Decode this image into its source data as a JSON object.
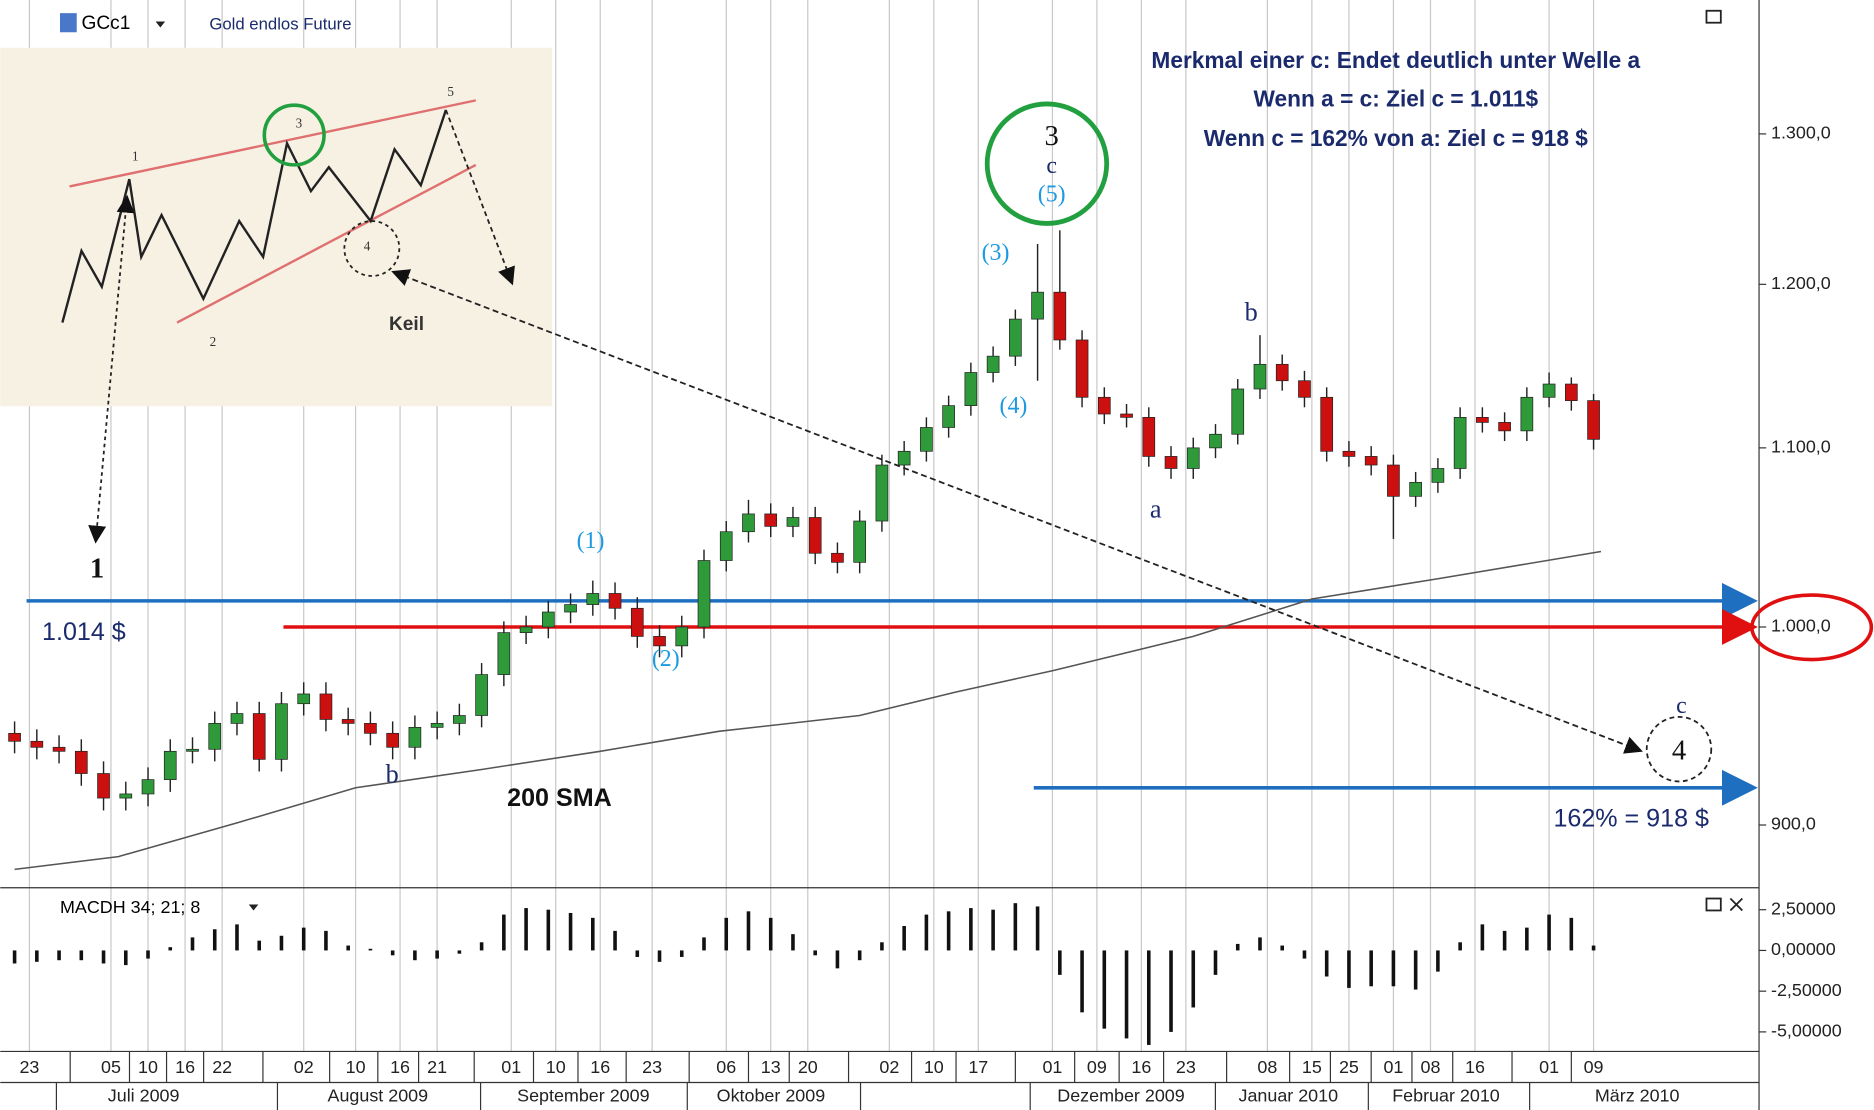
{
  "chart_data": [
    {
      "type": "candlestick",
      "header": "GCc1",
      "subtitle": "Gold endlos Future",
      "log_scale": true,
      "grid": true,
      "up_color": "#2f9a3a",
      "down_color": "#cc1010",
      "xlim": [
        0,
        235
      ],
      "ylim": [
        871,
        1396
      ],
      "yticks": [
        {
          "value": 900,
          "label": "900,0"
        },
        {
          "value": 1000,
          "label": "1.000,0"
        },
        {
          "value": 1100,
          "label": "1.100,0"
        },
        {
          "value": 1200,
          "label": "1.200,0"
        },
        {
          "value": 1300,
          "label": "1.300,0"
        }
      ],
      "x": [
        0,
        3,
        6,
        9,
        12,
        15,
        18,
        21,
        24,
        27,
        30,
        33,
        36,
        39,
        42,
        45,
        48,
        51,
        54,
        57,
        60,
        63,
        66,
        69,
        72,
        75,
        78,
        81,
        84,
        87,
        90,
        93,
        96,
        99,
        102,
        105,
        108,
        111,
        114,
        117,
        120,
        123,
        126,
        129,
        132,
        135,
        138,
        141,
        144,
        147,
        150,
        153,
        156,
        159,
        162,
        165,
        168,
        171,
        174,
        177,
        180,
        183,
        186,
        189,
        192,
        195,
        198,
        201,
        204,
        207,
        210,
        213
      ],
      "open": [
        945,
        941,
        938,
        936,
        925,
        913,
        915,
        922,
        936,
        937,
        950,
        955,
        932,
        960,
        965,
        952,
        950,
        945,
        938,
        948,
        950,
        954,
        975,
        997,
        1000,
        1008,
        1012,
        1018,
        1010,
        995,
        990,
        1000,
        1036,
        1052,
        1062,
        1055,
        1060,
        1040,
        1035,
        1058,
        1090,
        1098,
        1112,
        1125,
        1145,
        1155,
        1178,
        1195,
        1165,
        1130,
        1120,
        1118,
        1095,
        1088,
        1100,
        1108,
        1135,
        1150,
        1140,
        1130,
        1098,
        1095,
        1090,
        1072,
        1080,
        1088,
        1118,
        1115,
        1110,
        1130,
        1138,
        1128
      ],
      "high": [
        951,
        947,
        944,
        942,
        931,
        921,
        928,
        942,
        943,
        956,
        961,
        961,
        966,
        971,
        971,
        958,
        956,
        951,
        954,
        956,
        960,
        981,
        1003,
        1006,
        1014,
        1018,
        1025,
        1024,
        1016,
        1001,
        1006,
        1042,
        1058,
        1070,
        1068,
        1066,
        1066,
        1046,
        1064,
        1096,
        1104,
        1118,
        1131,
        1151,
        1161,
        1184,
        1226,
        1235,
        1171,
        1136,
        1126,
        1124,
        1101,
        1106,
        1114,
        1141,
        1168,
        1156,
        1146,
        1136,
        1104,
        1101,
        1096,
        1086,
        1094,
        1124,
        1124,
        1121,
        1136,
        1145,
        1142,
        1132
      ],
      "low": [
        935,
        932,
        930,
        919,
        907,
        907,
        909,
        916,
        930,
        931,
        944,
        926,
        926,
        954,
        946,
        944,
        939,
        932,
        932,
        942,
        944,
        948,
        969,
        991,
        994,
        1002,
        1006,
        1004,
        989,
        984,
        984,
        994,
        1030,
        1046,
        1049,
        1049,
        1034,
        1029,
        1029,
        1052,
        1084,
        1092,
        1106,
        1119,
        1139,
        1149,
        1140,
        1159,
        1124,
        1114,
        1112,
        1089,
        1082,
        1082,
        1094,
        1102,
        1129,
        1134,
        1124,
        1092,
        1089,
        1084,
        1048,
        1066,
        1074,
        1082,
        1109,
        1104,
        1104,
        1124,
        1122,
        1099
      ],
      "close": [
        941,
        938,
        936,
        925,
        913,
        915,
        922,
        936,
        937,
        950,
        955,
        932,
        960,
        965,
        952,
        950,
        945,
        938,
        948,
        950,
        954,
        975,
        997,
        1000,
        1008,
        1012,
        1018,
        1010,
        995,
        990,
        1000,
        1036,
        1052,
        1062,
        1055,
        1060,
        1040,
        1035,
        1058,
        1090,
        1098,
        1112,
        1125,
        1145,
        1155,
        1178,
        1195,
        1165,
        1130,
        1120,
        1118,
        1095,
        1088,
        1100,
        1108,
        1135,
        1150,
        1140,
        1130,
        1098,
        1095,
        1090,
        1072,
        1080,
        1088,
        1118,
        1115,
        1110,
        1130,
        1138,
        1128,
        1105
      ],
      "sma": {
        "color": "#555555",
        "x": [
          0,
          14,
          30,
          46,
          63,
          79,
          95,
          114,
          127,
          140,
          159,
          175,
          192,
          214
        ],
        "values": [
          879,
          885,
          901,
          918,
          927,
          936,
          946,
          954,
          966,
          977,
          995,
          1015,
          1026,
          1041
        ]
      },
      "levels": [
        {
          "value": 1014,
          "color": "#1f6fc0"
        },
        {
          "value": 1000,
          "color": "#e01010"
        },
        {
          "value": 918,
          "color": "#1f6fc0"
        }
      ],
      "annotations": [
        "Merkmal einer c: Endet deutlich unter Welle a",
        "Wenn a = c: Ziel c = 1.011$",
        "Wenn c = 162% von a: Ziel c = 918 $",
        "3",
        "c",
        "(5)",
        "(3)",
        "(4)",
        "(1)",
        "(2)",
        "b",
        "a",
        "b",
        "c",
        "4",
        "1",
        "1.014 $",
        "162% = 918 $",
        "200 SMA"
      ],
      "inset": {
        "labels": [
          "1",
          "2",
          "3",
          "4",
          "5",
          "Keil"
        ]
      }
    },
    {
      "type": "bar",
      "header": "MACDH 34; 21; 8",
      "color": "#111111",
      "xlim": [
        0,
        235
      ],
      "ylim": [
        -6.2,
        3.7
      ],
      "yticks": [
        {
          "value": -5,
          "label": "-5,00000"
        },
        {
          "value": -2.5,
          "label": "-2,50000"
        },
        {
          "value": 0,
          "label": "0,00000"
        },
        {
          "value": 2.5,
          "label": "2,50000"
        }
      ],
      "x": [
        0,
        3,
        6,
        9,
        12,
        15,
        18,
        21,
        24,
        27,
        30,
        33,
        36,
        39,
        42,
        45,
        48,
        51,
        54,
        57,
        60,
        63,
        66,
        69,
        72,
        75,
        78,
        81,
        84,
        87,
        90,
        93,
        96,
        99,
        102,
        105,
        108,
        111,
        114,
        117,
        120,
        123,
        126,
        129,
        132,
        135,
        138,
        141,
        144,
        147,
        150,
        153,
        156,
        159,
        162,
        165,
        168,
        171,
        174,
        177,
        180,
        183,
        186,
        189,
        192,
        195,
        198,
        201,
        204,
        207,
        210,
        213
      ],
      "values": [
        -0.8,
        -0.7,
        -0.6,
        -0.6,
        -0.8,
        -0.9,
        -0.5,
        0.2,
        0.8,
        1.3,
        1.6,
        0.6,
        0.9,
        1.4,
        1.2,
        0.3,
        0.1,
        -0.3,
        -0.6,
        -0.5,
        -0.2,
        0.5,
        2.2,
        2.6,
        2.5,
        2.3,
        2.0,
        1.2,
        -0.4,
        -0.7,
        -0.4,
        0.8,
        2.0,
        2.4,
        2.0,
        1.0,
        -0.3,
        -1.1,
        -0.6,
        0.5,
        1.5,
        2.2,
        2.4,
        2.6,
        2.5,
        2.9,
        2.7,
        -1.5,
        -3.8,
        -4.8,
        -5.4,
        -5.8,
        -5.0,
        -3.5,
        -1.5,
        0.4,
        0.8,
        0.3,
        -0.5,
        -1.6,
        -2.3,
        -2.2,
        -2.2,
        -2.4,
        -1.3,
        0.5,
        1.6,
        1.2,
        1.4,
        2.2,
        2.0,
        0.3
      ],
      "xticks": [
        {
          "value": 2,
          "label": "23"
        },
        {
          "value": 13,
          "label": "05"
        },
        {
          "value": 18,
          "label": "10"
        },
        {
          "value": 23,
          "label": "16"
        },
        {
          "value": 28,
          "label": "22"
        },
        {
          "value": 39,
          "label": "02"
        },
        {
          "value": 46,
          "label": "10"
        },
        {
          "value": 52,
          "label": "16"
        },
        {
          "value": 57,
          "label": "21"
        },
        {
          "value": 67,
          "label": "01"
        },
        {
          "value": 73,
          "label": "10"
        },
        {
          "value": 79,
          "label": "16"
        },
        {
          "value": 86,
          "label": "23"
        },
        {
          "value": 96,
          "label": "06"
        },
        {
          "value": 102,
          "label": "13"
        },
        {
          "value": 107,
          "label": "20"
        },
        {
          "value": 118,
          "label": "02"
        },
        {
          "value": 124,
          "label": "10"
        },
        {
          "value": 130,
          "label": "17"
        },
        {
          "value": 140,
          "label": "01"
        },
        {
          "value": 146,
          "label": "09"
        },
        {
          "value": 152,
          "label": "16"
        },
        {
          "value": 158,
          "label": "23"
        },
        {
          "value": 169,
          "label": "08"
        },
        {
          "value": 175,
          "label": "15"
        },
        {
          "value": 180,
          "label": "25"
        },
        {
          "value": 186,
          "label": "01"
        },
        {
          "value": 191,
          "label": "08"
        },
        {
          "value": 197,
          "label": "16"
        },
        {
          "value": 207,
          "label": "01"
        },
        {
          "value": 213,
          "label": "09"
        }
      ],
      "months": [
        "Juli 2009",
        "August 2009",
        "September 2009",
        "Oktober 2009",
        "Dezember 2009",
        "Januar 2010",
        "Februar 2010",
        "März 2010"
      ]
    }
  ]
}
